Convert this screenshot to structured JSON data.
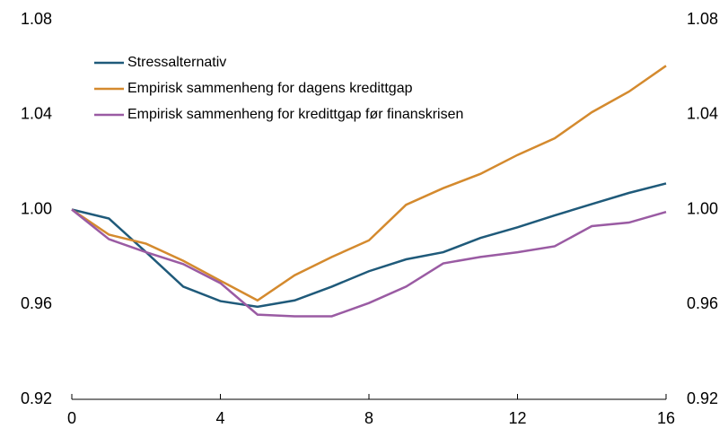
{
  "chart_data": {
    "type": "line",
    "x": [
      0,
      1,
      2,
      3,
      4,
      5,
      6,
      7,
      8,
      9,
      10,
      11,
      12,
      13,
      14,
      15,
      16
    ],
    "xlim": [
      0,
      16
    ],
    "xticks": [
      0,
      4,
      8,
      12,
      16
    ],
    "ylim": [
      0.92,
      1.08
    ],
    "yticks": [
      0.92,
      0.96,
      {
        "value": 1.0,
        "label": "1.00"
      },
      1.04,
      1.08
    ],
    "y2lim": [
      0.92,
      1.08
    ],
    "y2ticks": [
      0.92,
      0.96,
      {
        "value": 1.0,
        "label": "1.00"
      },
      1.04,
      1.08
    ],
    "grid": false,
    "legend": "upper-left",
    "series": [
      {
        "name": "Stressalternativ",
        "color": "#1f5a7a",
        "values": [
          1.0,
          0.9962,
          0.982,
          0.9675,
          0.9614,
          0.959,
          0.9617,
          0.9675,
          0.974,
          0.979,
          0.982,
          0.988,
          0.9925,
          0.9975,
          1.0023,
          1.007,
          1.011
        ]
      },
      {
        "name": "Empirisk sammenheng for dagens kredittgap",
        "color": "#d48a2e",
        "values": [
          1.0,
          0.9894,
          0.9856,
          0.9784,
          0.97,
          0.9617,
          0.9723,
          0.98,
          0.987,
          1.002,
          1.009,
          1.015,
          1.023,
          1.03,
          1.041,
          1.0497,
          1.0606
        ]
      },
      {
        "name": "Empirisk sammenheng for kredittgap før finanskrisen",
        "color": "#9a5ba3",
        "values": [
          1.0,
          0.9875,
          0.982,
          0.977,
          0.969,
          0.9557,
          0.955,
          0.955,
          0.9606,
          0.9675,
          0.9773,
          0.98,
          0.982,
          0.9845,
          0.993,
          0.9945,
          0.999
        ]
      }
    ]
  }
}
